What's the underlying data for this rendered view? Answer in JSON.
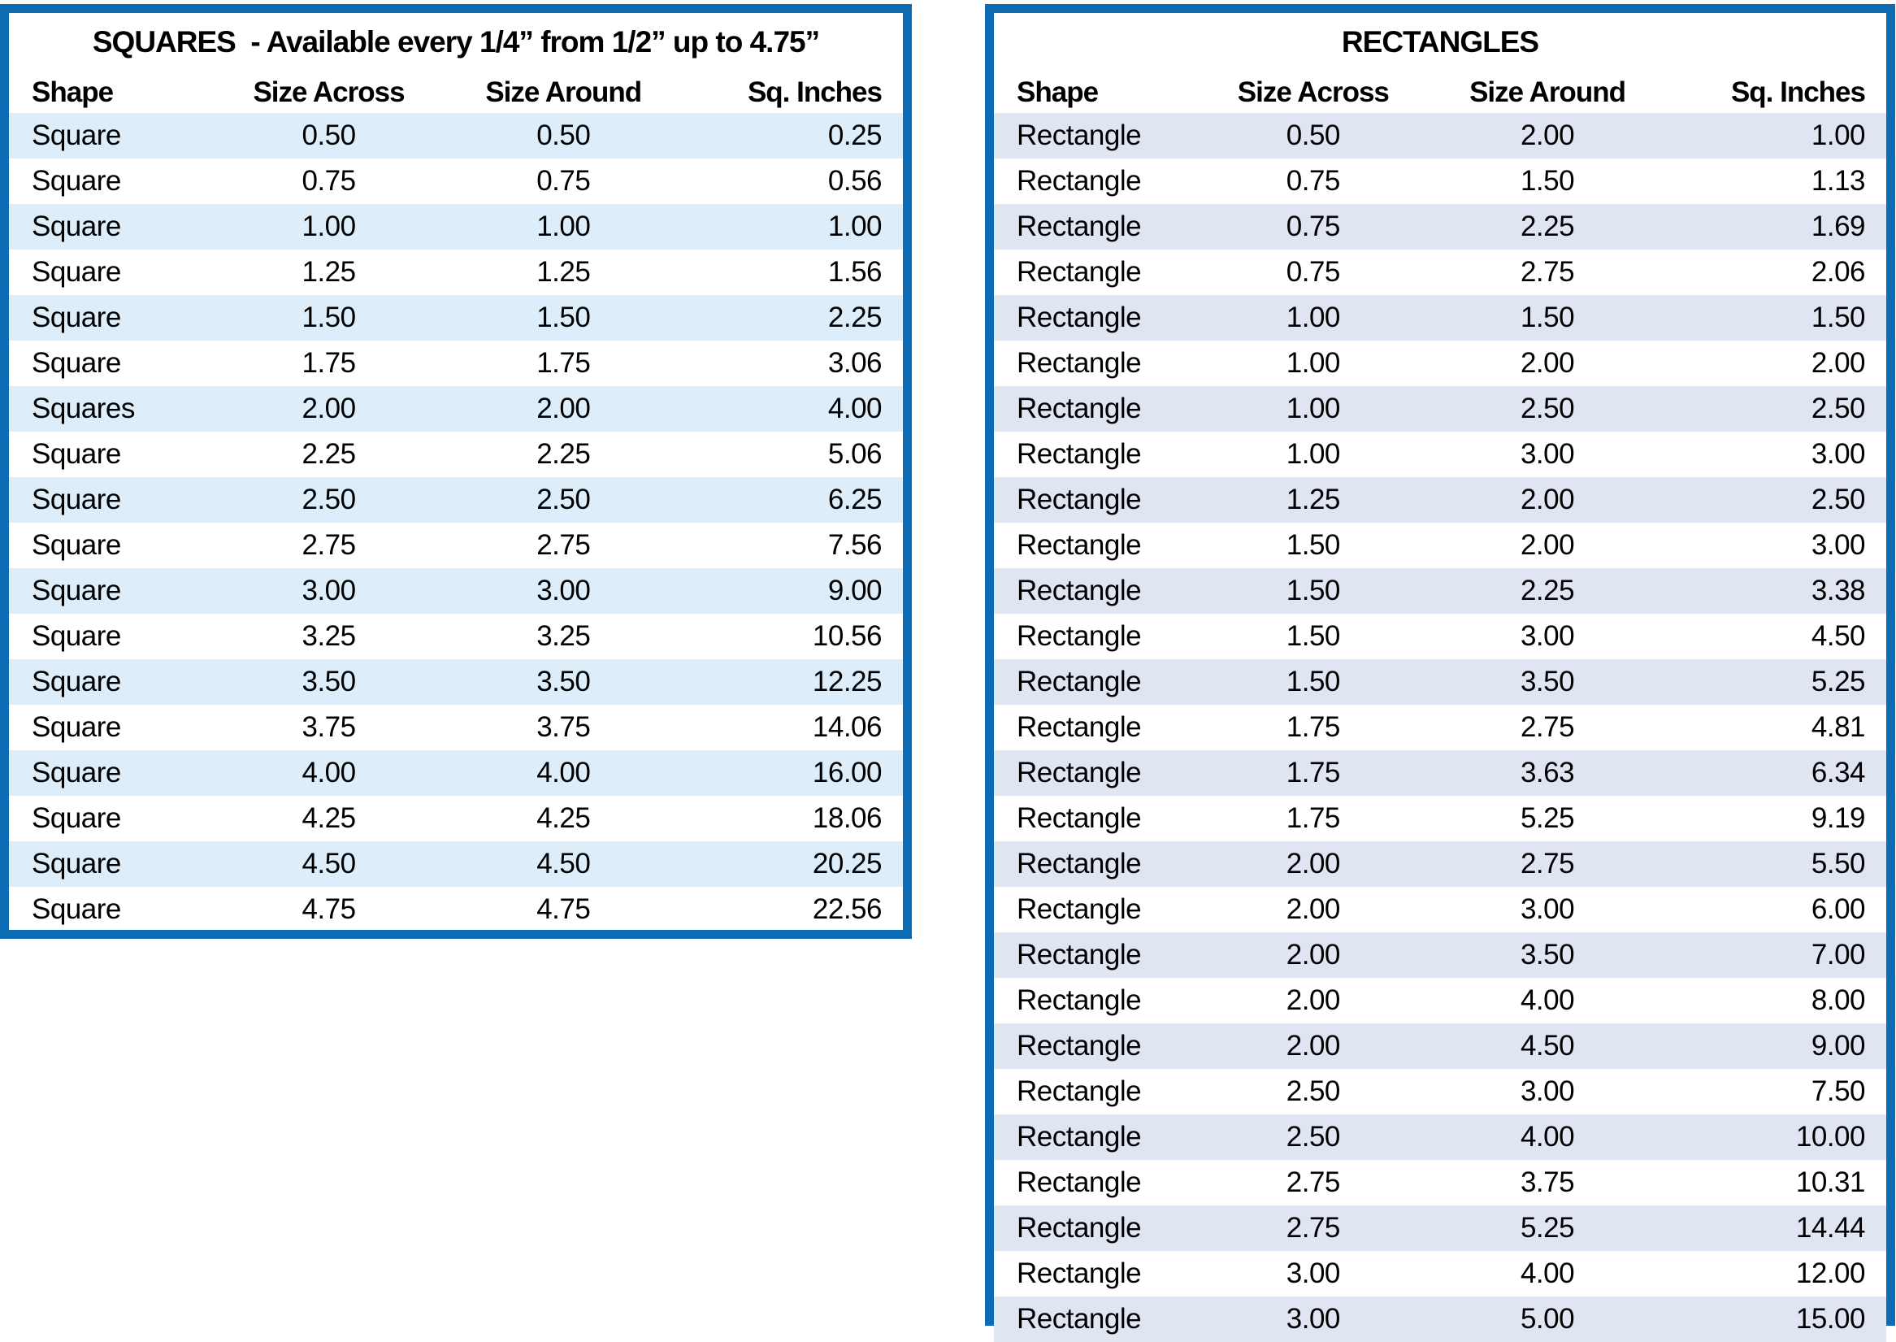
{
  "colors": {
    "table_border": "#0d6cb4",
    "squares_row_shade": "#ddeefa",
    "rectangles_row_shade": "#e0e5f2",
    "text": "#000000",
    "background": "#ffffff"
  },
  "squares_table": {
    "title": "SQUARES  - Available every 1/4” from 1/2” up to 4.75”",
    "columns": [
      "Shape",
      "Size Across",
      "Size Around",
      "Sq. Inches"
    ],
    "rows": [
      [
        "Square",
        "0.50",
        "0.50",
        "0.25"
      ],
      [
        "Square",
        "0.75",
        "0.75",
        "0.56"
      ],
      [
        "Square",
        "1.00",
        "1.00",
        "1.00"
      ],
      [
        "Square",
        "1.25",
        "1.25",
        "1.56"
      ],
      [
        "Square",
        "1.50",
        "1.50",
        "2.25"
      ],
      [
        "Square",
        "1.75",
        "1.75",
        "3.06"
      ],
      [
        "Squares",
        "2.00",
        "2.00",
        "4.00"
      ],
      [
        "Square",
        "2.25",
        "2.25",
        "5.06"
      ],
      [
        "Square",
        "2.50",
        "2.50",
        "6.25"
      ],
      [
        "Square",
        "2.75",
        "2.75",
        "7.56"
      ],
      [
        "Square",
        "3.00",
        "3.00",
        "9.00"
      ],
      [
        "Square",
        "3.25",
        "3.25",
        "10.56"
      ],
      [
        "Square",
        "3.50",
        "3.50",
        "12.25"
      ],
      [
        "Square",
        "3.75",
        "3.75",
        "14.06"
      ],
      [
        "Square",
        "4.00",
        "4.00",
        "16.00"
      ],
      [
        "Square",
        "4.25",
        "4.25",
        "18.06"
      ],
      [
        "Square",
        "4.50",
        "4.50",
        "20.25"
      ],
      [
        "Square",
        "4.75",
        "4.75",
        "22.56"
      ]
    ]
  },
  "rectangles_table": {
    "title": "RECTANGLES",
    "columns": [
      "Shape",
      "Size Across",
      "Size Around",
      "Sq. Inches"
    ],
    "rows": [
      [
        "Rectangle",
        "0.50",
        "2.00",
        "1.00"
      ],
      [
        "Rectangle",
        "0.75",
        "1.50",
        "1.13"
      ],
      [
        "Rectangle",
        "0.75",
        "2.25",
        "1.69"
      ],
      [
        "Rectangle",
        "0.75",
        "2.75",
        "2.06"
      ],
      [
        "Rectangle",
        "1.00",
        "1.50",
        "1.50"
      ],
      [
        "Rectangle",
        "1.00",
        "2.00",
        "2.00"
      ],
      [
        "Rectangle",
        "1.00",
        "2.50",
        "2.50"
      ],
      [
        "Rectangle",
        "1.00",
        "3.00",
        "3.00"
      ],
      [
        "Rectangle",
        "1.25",
        "2.00",
        "2.50"
      ],
      [
        "Rectangle",
        "1.50",
        "2.00",
        "3.00"
      ],
      [
        "Rectangle",
        "1.50",
        "2.25",
        "3.38"
      ],
      [
        "Rectangle",
        "1.50",
        "3.00",
        "4.50"
      ],
      [
        "Rectangle",
        "1.50",
        "3.50",
        "5.25"
      ],
      [
        "Rectangle",
        "1.75",
        "2.75",
        "4.81"
      ],
      [
        "Rectangle",
        "1.75",
        "3.63",
        "6.34"
      ],
      [
        "Rectangle",
        "1.75",
        "5.25",
        "9.19"
      ],
      [
        "Rectangle",
        "2.00",
        "2.75",
        "5.50"
      ],
      [
        "Rectangle",
        "2.00",
        "3.00",
        "6.00"
      ],
      [
        "Rectangle",
        "2.00",
        "3.50",
        "7.00"
      ],
      [
        "Rectangle",
        "2.00",
        "4.00",
        "8.00"
      ],
      [
        "Rectangle",
        "2.00",
        "4.50",
        "9.00"
      ],
      [
        "Rectangle",
        "2.50",
        "3.00",
        "7.50"
      ],
      [
        "Rectangle",
        "2.50",
        "4.00",
        "10.00"
      ],
      [
        "Rectangle",
        "2.75",
        "3.75",
        "10.31"
      ],
      [
        "Rectangle",
        "2.75",
        "5.25",
        "14.44"
      ],
      [
        "Rectangle",
        "3.00",
        "4.00",
        "12.00"
      ],
      [
        "Rectangle",
        "3.00",
        "5.00",
        "15.00"
      ]
    ]
  }
}
